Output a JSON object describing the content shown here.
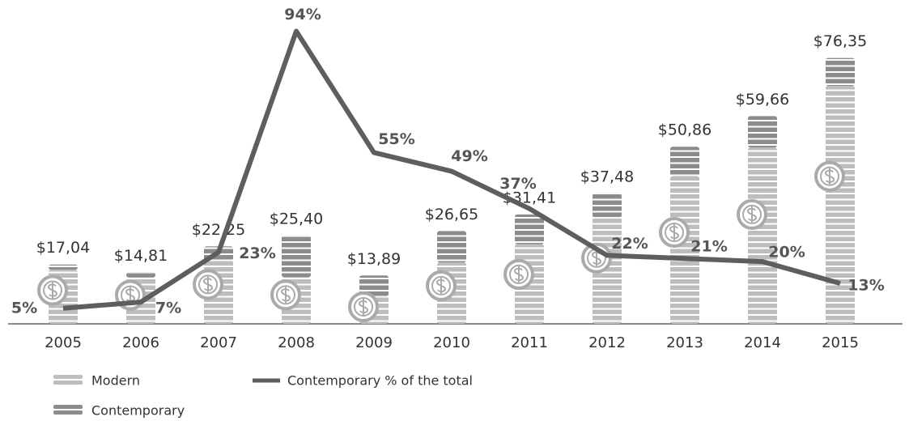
{
  "chart_data": {
    "type": "bar",
    "stacked": true,
    "categories": [
      "2005",
      "2006",
      "2007",
      "2008",
      "2009",
      "2010",
      "2011",
      "2012",
      "2013",
      "2014",
      "2015"
    ],
    "series": [
      {
        "name": "Modern",
        "color": "#bdbdbd",
        "values": [
          15.54,
          13.31,
          18.25,
          13.4,
          7.89,
          17.65,
          22.91,
          30.48,
          42.36,
          50.66,
          68.35
        ]
      },
      {
        "name": "Contemporary",
        "color": "#8c8c8c",
        "values": [
          1.5,
          1.5,
          4,
          12,
          6,
          9,
          8.5,
          7,
          8.5,
          9,
          8
        ]
      },
      {
        "name": "Contemporary % of the total",
        "type": "line",
        "axis": "y2",
        "color": "#5e5e5e",
        "values": [
          5,
          7,
          23,
          94,
          55,
          49,
          37,
          22,
          21,
          20,
          13
        ],
        "value_labels": [
          "5%",
          "7%",
          "23%",
          "94%",
          "55%",
          "49%",
          "37%",
          "22%",
          "21%",
          "20%",
          "13%"
        ]
      }
    ],
    "totals": [
      17.04,
      14.81,
      22.25,
      25.4,
      13.89,
      26.65,
      31.41,
      37.48,
      50.86,
      59.66,
      76.35
    ],
    "total_labels": [
      "$17,04",
      "$14,81",
      "$22,25",
      "$25,40",
      "$13,89",
      "$26,65",
      "$31,41",
      "$37,48",
      "$50,86",
      "$59,66",
      "$76,35"
    ],
    "ylim": [
      0,
      93
    ],
    "y2lim": [
      0,
      104
    ]
  }
}
